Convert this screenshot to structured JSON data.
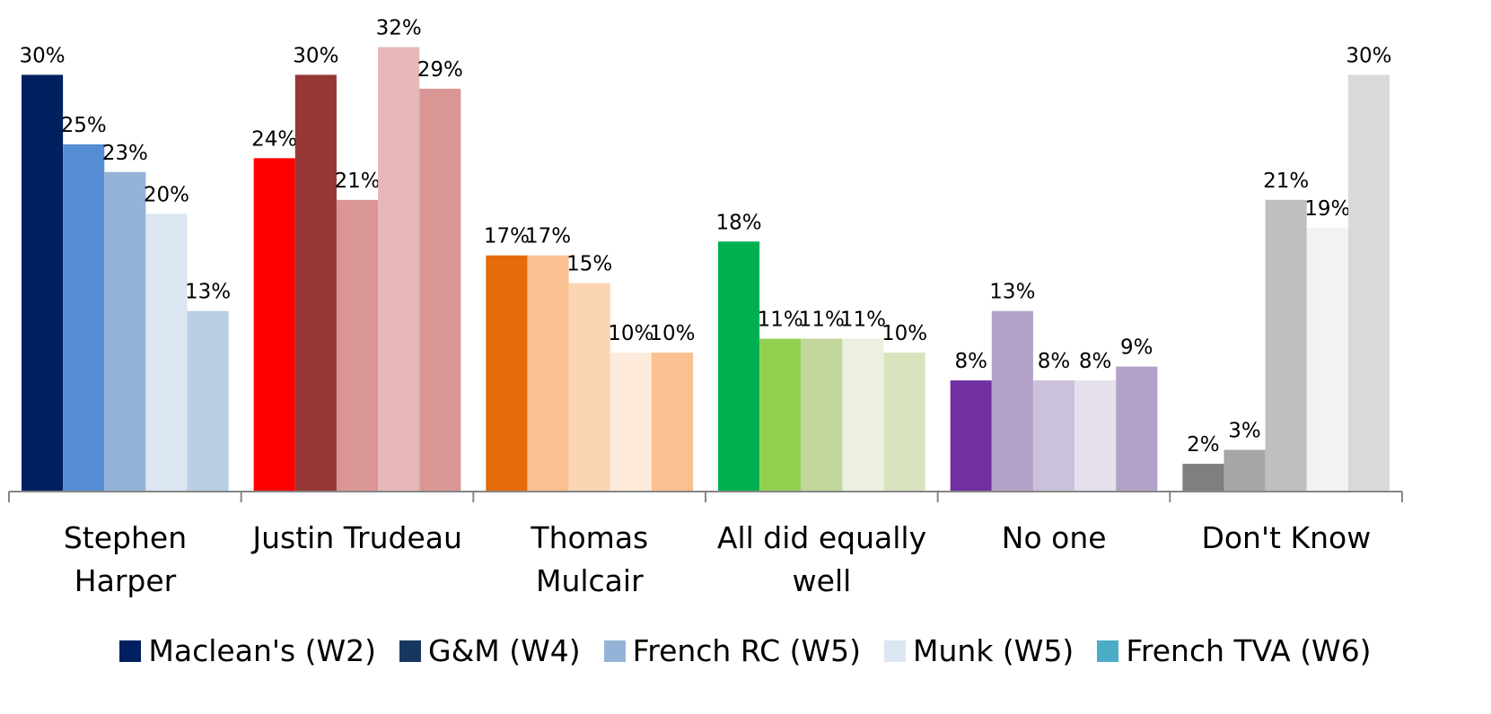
{
  "chart_data": {
    "type": "bar",
    "categories": [
      "Stephen Harper",
      "Justin Trudeau",
      "Thomas Mulcair",
      "All did equally well",
      "No one",
      "Don't Know"
    ],
    "ylim": [
      0,
      35
    ],
    "legend": "bottom",
    "series": [
      {
        "name": "Maclean's (W2)",
        "color": "#002060",
        "colors": [
          "#002060",
          "#ff0000",
          "#e46c0a",
          "#00b050",
          "#7030a0",
          "#7f7f7f"
        ],
        "values": [
          30,
          24,
          17,
          18,
          8,
          2
        ],
        "value_labels": [
          "30%",
          "24%",
          "17%",
          "18%",
          "8%",
          "2%"
        ]
      },
      {
        "name": "G&M (W4)",
        "color": "#17375e",
        "colors": [
          "#558ed5",
          "#953735",
          "#fac090",
          "#92d050",
          "#b3a2c7",
          "#a6a6a6"
        ],
        "values": [
          25,
          30,
          17,
          11,
          13,
          3
        ],
        "value_labels": [
          "25%",
          "30%",
          "17%",
          "11%",
          "13%",
          "3%"
        ]
      },
      {
        "name": "French RC (W5)",
        "color": "#95b3d7",
        "colors": [
          "#95b3d7",
          "#d99694",
          "#fcd5b5",
          "#c3d69b",
          "#ccc1da",
          "#bfbfbf"
        ],
        "values": [
          23,
          21,
          15,
          11,
          8,
          21
        ],
        "value_labels": [
          "23%",
          "21%",
          "15%",
          "11%",
          "8%",
          "21%"
        ]
      },
      {
        "name": "Munk (W5)",
        "color": "#dce6f2",
        "colors": [
          "#dce6f2",
          "#e6b9b8",
          "#fdeada",
          "#ebf1de",
          "#e6e0ec",
          "#f2f2f2"
        ],
        "values": [
          20,
          32,
          10,
          11,
          8,
          19
        ],
        "value_labels": [
          "20%",
          "32%",
          "10%",
          "11%",
          "8%",
          "19%"
        ]
      },
      {
        "name": "French TVA (W6)",
        "color": "#4bacc6",
        "colors": [
          "#b9cde5",
          "#d99694",
          "#fac090",
          "#d7e4bd",
          "#b3a2c7",
          "#d9d9d9"
        ],
        "values": [
          13,
          29,
          10,
          10,
          9,
          30
        ],
        "value_labels": [
          "13%",
          "29%",
          "10%",
          "10%",
          "9%",
          "30%"
        ]
      }
    ]
  }
}
